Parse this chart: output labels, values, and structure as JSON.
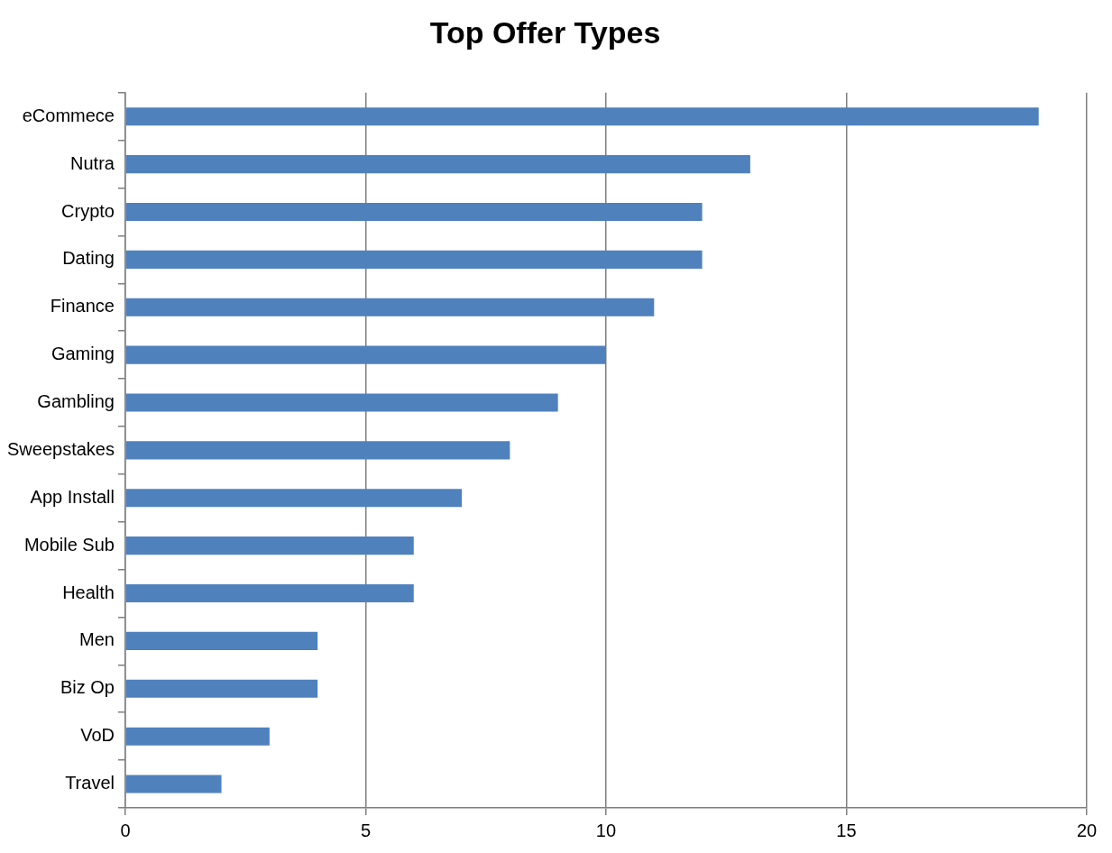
{
  "chart_data": {
    "type": "bar",
    "orientation": "horizontal",
    "title": "Top Offer Types",
    "categories": [
      "eCommece",
      "Nutra",
      "Crypto",
      "Dating",
      "Finance",
      "Gaming",
      "Gambling",
      "Sweepstakes",
      "App Install",
      "Mobile Sub",
      "Health",
      "Men",
      "Biz Op",
      "VoD",
      "Travel"
    ],
    "values": [
      19,
      13,
      12,
      12,
      11,
      10,
      9,
      8,
      7,
      6,
      6,
      4,
      4,
      3,
      2
    ],
    "color": "#4f81bd",
    "xlim": [
      0,
      20
    ],
    "xticks": [
      0,
      5,
      10,
      15,
      20
    ],
    "grid": "x",
    "legend": false
  }
}
